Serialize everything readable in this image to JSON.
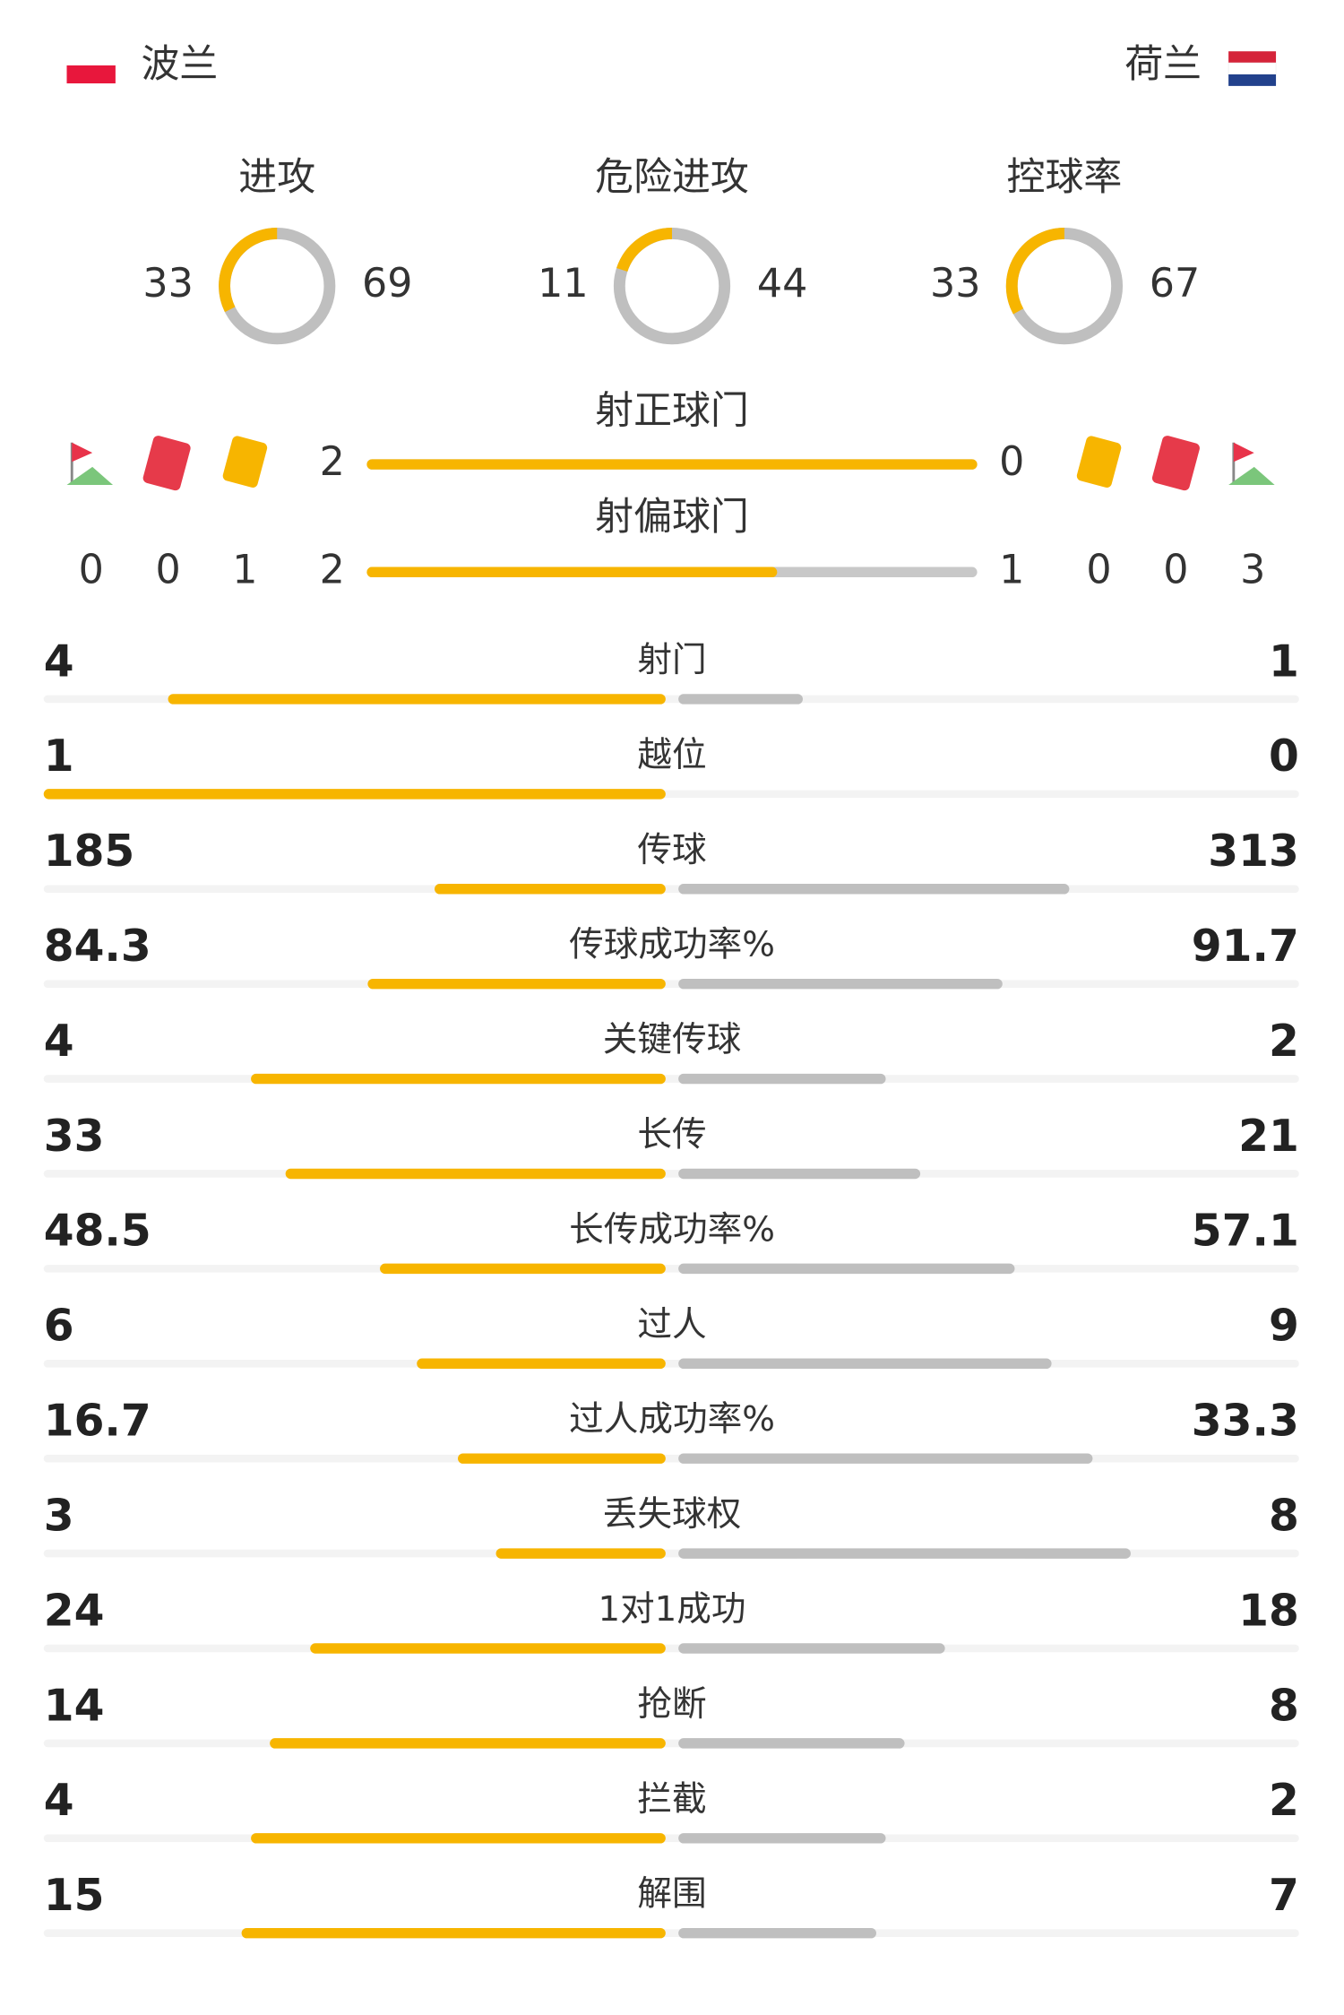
{
  "teams": {
    "home": "波兰",
    "away": "荷兰"
  },
  "rings": [
    {
      "label": "进攻",
      "home": 33,
      "away": 69
    },
    {
      "label": "危险进攻",
      "home": 11,
      "away": 44
    },
    {
      "label": "控球率",
      "home": 33,
      "away": 67
    }
  ],
  "shots": [
    {
      "label": "射正球门",
      "home": 2,
      "away": 0
    },
    {
      "label": "射偏球门",
      "home": 2,
      "away": 1
    }
  ],
  "cards": {
    "home": {
      "corners": 0,
      "red": 0,
      "yellow": 1
    },
    "away": {
      "yellow": 0,
      "red": 0,
      "corners": 3
    }
  },
  "stats": [
    {
      "label": "射门",
      "home": 4,
      "away": 1
    },
    {
      "label": "越位",
      "home": 1,
      "away": 0
    },
    {
      "label": "传球",
      "home": 185,
      "away": 313
    },
    {
      "label": "传球成功率%",
      "home": 84.3,
      "away": 91.7
    },
    {
      "label": "关键传球",
      "home": 4,
      "away": 2
    },
    {
      "label": "长传",
      "home": 33,
      "away": 21
    },
    {
      "label": "长传成功率%",
      "home": 48.5,
      "away": 57.1
    },
    {
      "label": "过人",
      "home": 6,
      "away": 9
    },
    {
      "label": "过人成功率%",
      "home": 16.7,
      "away": 33.3
    },
    {
      "label": "丢失球权",
      "home": 3,
      "away": 8
    },
    {
      "label": "1对1成功",
      "home": 24,
      "away": 18
    },
    {
      "label": "抢断",
      "home": 14,
      "away": 8
    },
    {
      "label": "拦截",
      "home": 4,
      "away": 2
    },
    {
      "label": "解围",
      "home": 15,
      "away": 7
    }
  ]
}
